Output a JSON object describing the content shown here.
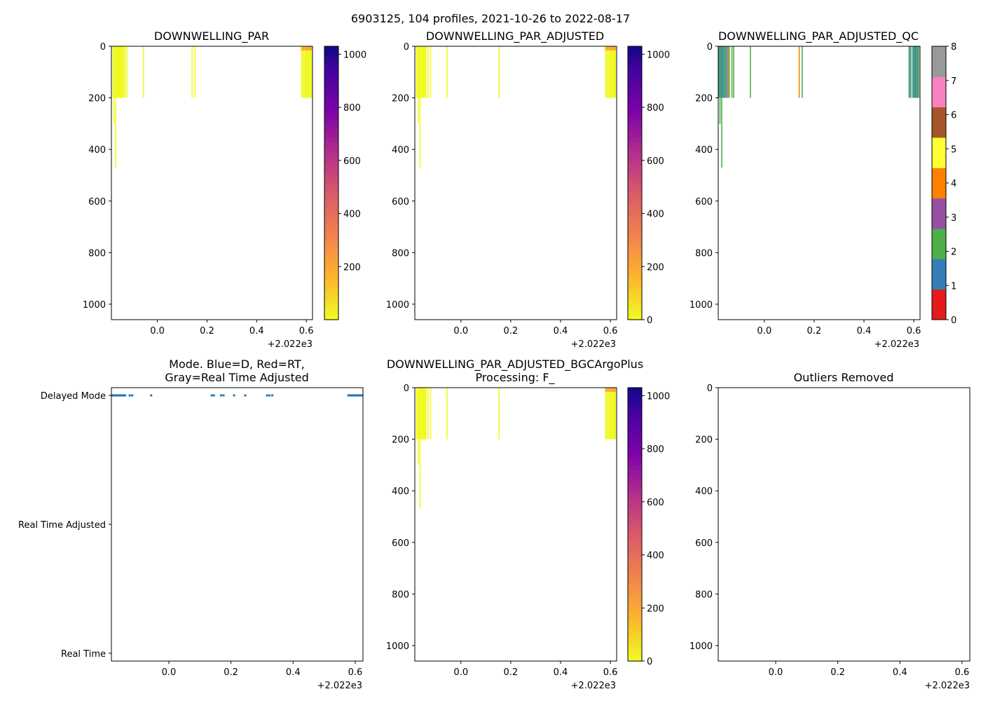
{
  "figure": {
    "suptitle": "6903125, 104 profiles, 2021-10-26 to 2022-08-17",
    "offset_label": "+2.022e3"
  },
  "colors": {
    "par_yellow": "#f0f921",
    "par_orange": "#fca636",
    "par_red": "#e16462",
    "mode_blue": "#1f77b4",
    "qc": [
      "#e41a1c",
      "#377eb8",
      "#4daf4a",
      "#984ea3",
      "#ff7f00",
      "#ffff33",
      "#a65628",
      "#f781bf",
      "#999999"
    ]
  },
  "chart_data": [
    {
      "id": "par",
      "type": "heatmap",
      "title": "DOWNWELLING_PAR",
      "x_ticks": [
        "0.0",
        "0.2",
        "0.4",
        "0.6"
      ],
      "x_tick_values": [
        0.0,
        0.2,
        0.4,
        0.6
      ],
      "xlim": [
        -0.185,
        0.625
      ],
      "y_ticks": [
        "0",
        "200",
        "400",
        "600",
        "800",
        "1000"
      ],
      "y_tick_values": [
        0,
        200,
        400,
        600,
        800,
        1000
      ],
      "ylim": [
        1060,
        0
      ],
      "colorbar": {
        "ticks": [
          "200",
          "400",
          "600",
          "800",
          "1000"
        ],
        "tick_values": [
          200,
          400,
          600,
          800,
          1000
        ],
        "range": [
          0,
          1030
        ],
        "scale": "plasma_r"
      },
      "profiles": [
        {
          "x": -0.178,
          "depth": 200
        },
        {
          "x": -0.175,
          "depth": 300
        },
        {
          "x": -0.172,
          "depth": 200
        },
        {
          "x": -0.168,
          "depth": 470
        },
        {
          "x": -0.164,
          "depth": 200
        },
        {
          "x": -0.16,
          "depth": 200
        },
        {
          "x": -0.156,
          "depth": 200
        },
        {
          "x": -0.152,
          "depth": 200
        },
        {
          "x": -0.148,
          "depth": 200
        },
        {
          "x": -0.144,
          "depth": 200
        },
        {
          "x": -0.14,
          "depth": 200
        },
        {
          "x": -0.136,
          "depth": 200
        },
        {
          "x": -0.13,
          "depth": 200
        },
        {
          "x": -0.123,
          "depth": 200
        },
        {
          "x": -0.056,
          "depth": 200
        },
        {
          "x": 0.14,
          "depth": 200
        },
        {
          "x": 0.152,
          "depth": 200
        },
        {
          "x": 0.581,
          "depth": 200
        },
        {
          "x": 0.586,
          "depth": 200
        },
        {
          "x": 0.591,
          "depth": 200
        },
        {
          "x": 0.596,
          "depth": 200
        },
        {
          "x": 0.6,
          "depth": 200
        },
        {
          "x": 0.604,
          "depth": 200
        },
        {
          "x": 0.608,
          "depth": 200
        },
        {
          "x": 0.612,
          "depth": 200
        },
        {
          "x": 0.616,
          "depth": 200
        },
        {
          "x": 0.62,
          "depth": 200
        }
      ]
    },
    {
      "id": "par_adjusted",
      "type": "heatmap",
      "title": "DOWNWELLING_PAR_ADJUSTED",
      "x_ticks": [
        "0.0",
        "0.2",
        "0.4",
        "0.6"
      ],
      "x_tick_values": [
        0.0,
        0.2,
        0.4,
        0.6
      ],
      "xlim": [
        -0.185,
        0.625
      ],
      "y_ticks": [
        "0",
        "200",
        "400",
        "600",
        "800",
        "1000"
      ],
      "y_tick_values": [
        0,
        200,
        400,
        600,
        800,
        1000
      ],
      "ylim": [
        1060,
        0
      ],
      "colorbar": {
        "ticks": [
          "0",
          "200",
          "400",
          "600",
          "800",
          "1000"
        ],
        "tick_values": [
          0,
          200,
          400,
          600,
          800,
          1000
        ],
        "range": [
          0,
          1030
        ],
        "scale": "plasma_r"
      },
      "profiles": [
        {
          "x": -0.178,
          "depth": 200
        },
        {
          "x": -0.174,
          "depth": 200
        },
        {
          "x": -0.171,
          "depth": 300
        },
        {
          "x": -0.167,
          "depth": 200
        },
        {
          "x": -0.164,
          "depth": 470
        },
        {
          "x": -0.16,
          "depth": 200
        },
        {
          "x": -0.156,
          "depth": 200
        },
        {
          "x": -0.152,
          "depth": 200
        },
        {
          "x": -0.148,
          "depth": 200
        },
        {
          "x": -0.144,
          "depth": 200
        },
        {
          "x": -0.14,
          "depth": 200
        },
        {
          "x": -0.132,
          "depth": 200
        },
        {
          "x": -0.122,
          "depth": 200
        },
        {
          "x": -0.056,
          "depth": 200
        },
        {
          "x": 0.153,
          "depth": 200
        },
        {
          "x": 0.581,
          "depth": 200
        },
        {
          "x": 0.586,
          "depth": 200
        },
        {
          "x": 0.591,
          "depth": 200
        },
        {
          "x": 0.596,
          "depth": 200
        },
        {
          "x": 0.6,
          "depth": 200
        },
        {
          "x": 0.604,
          "depth": 200
        },
        {
          "x": 0.608,
          "depth": 200
        },
        {
          "x": 0.612,
          "depth": 200
        },
        {
          "x": 0.616,
          "depth": 200
        },
        {
          "x": 0.62,
          "depth": 200
        }
      ]
    },
    {
      "id": "par_adjusted_qc",
      "type": "heatmap",
      "title": "DOWNWELLING_PAR_ADJUSTED_QC",
      "x_ticks": [
        "0.0",
        "0.2",
        "0.4",
        "0.6"
      ],
      "x_tick_values": [
        0.0,
        0.2,
        0.4,
        0.6
      ],
      "xlim": [
        -0.185,
        0.625
      ],
      "y_ticks": [
        "0",
        "200",
        "400",
        "600",
        "800",
        "1000"
      ],
      "y_tick_values": [
        0,
        200,
        400,
        600,
        800,
        1000
      ],
      "ylim": [
        1060,
        0
      ],
      "colorbar": {
        "ticks": [
          "0",
          "1",
          "2",
          "3",
          "4",
          "5",
          "6",
          "7",
          "8"
        ],
        "tick_values": [
          0,
          1,
          2,
          3,
          4,
          5,
          6,
          7,
          8
        ],
        "range": [
          0,
          8
        ],
        "scale": "qc_categorical"
      },
      "profiles": [
        {
          "x": -0.182,
          "depth": 200,
          "qc": 1
        },
        {
          "x": -0.178,
          "depth": 300,
          "qc": 2
        },
        {
          "x": -0.174,
          "depth": 200,
          "qc": 1
        },
        {
          "x": -0.171,
          "depth": 470,
          "qc": 2
        },
        {
          "x": -0.168,
          "depth": 200,
          "qc": 1
        },
        {
          "x": -0.164,
          "depth": 200,
          "qc": 2
        },
        {
          "x": -0.16,
          "depth": 200,
          "qc": 1
        },
        {
          "x": -0.155,
          "depth": 200,
          "qc": 2
        },
        {
          "x": -0.15,
          "depth": 200,
          "qc": 1
        },
        {
          "x": -0.145,
          "depth": 200,
          "qc": 4
        },
        {
          "x": -0.141,
          "depth": 200,
          "qc": 2
        },
        {
          "x": -0.13,
          "depth": 200,
          "qc": 2
        },
        {
          "x": -0.123,
          "depth": 200,
          "qc": 2
        },
        {
          "x": -0.056,
          "depth": 200,
          "qc": 2
        },
        {
          "x": 0.14,
          "depth": 200,
          "qc": 4
        },
        {
          "x": 0.152,
          "depth": 200,
          "qc": 2
        },
        {
          "x": 0.581,
          "depth": 200,
          "qc": 2
        },
        {
          "x": 0.586,
          "depth": 200,
          "qc": 1
        },
        {
          "x": 0.593,
          "depth": 200,
          "qc": 2
        },
        {
          "x": 0.599,
          "depth": 200,
          "qc": 1
        },
        {
          "x": 0.603,
          "depth": 200,
          "qc": 2
        },
        {
          "x": 0.607,
          "depth": 200,
          "qc": 1
        },
        {
          "x": 0.611,
          "depth": 200,
          "qc": 2
        },
        {
          "x": 0.615,
          "depth": 200,
          "qc": 1
        },
        {
          "x": 0.62,
          "depth": 200,
          "qc": 2
        }
      ]
    },
    {
      "id": "mode",
      "type": "scatter",
      "title_line1": "Mode. Blue=D, Red=RT,",
      "title_line2": "Gray=Real Time Adjusted",
      "x_ticks": [
        "0.0",
        "0.2",
        "0.4",
        "0.6"
      ],
      "x_tick_values": [
        0.0,
        0.2,
        0.4,
        0.6
      ],
      "xlim": [
        -0.185,
        0.625
      ],
      "y_categories": [
        "Delayed Mode",
        "Real Time Adjusted",
        "Real Time"
      ],
      "y_category_values": [
        2,
        1,
        0
      ],
      "ylim": [
        -0.06,
        2.06
      ],
      "points_mode": "Delayed Mode",
      "points_x": [
        -0.182,
        -0.179,
        -0.176,
        -0.173,
        -0.17,
        -0.167,
        -0.164,
        -0.161,
        -0.158,
        -0.155,
        -0.15,
        -0.146,
        -0.141,
        -0.126,
        -0.118,
        -0.057,
        0.138,
        0.145,
        0.168,
        0.176,
        0.21,
        0.246,
        0.316,
        0.324,
        0.333,
        0.578,
        0.582,
        0.586,
        0.589,
        0.592,
        0.595,
        0.598,
        0.601,
        0.604,
        0.607,
        0.61,
        0.613,
        0.616,
        0.619,
        0.622
      ]
    },
    {
      "id": "par_bgcargoplus",
      "type": "heatmap",
      "title_line1": "DOWNWELLING_PAR_ADJUSTED_BGCArgoPlus",
      "title_line2": "Processing: F_",
      "x_ticks": [
        "0.0",
        "0.2",
        "0.4",
        "0.6"
      ],
      "x_tick_values": [
        0.0,
        0.2,
        0.4,
        0.6
      ],
      "xlim": [
        -0.185,
        0.625
      ],
      "y_ticks": [
        "0",
        "200",
        "400",
        "600",
        "800",
        "1000"
      ],
      "y_tick_values": [
        0,
        200,
        400,
        600,
        800,
        1000
      ],
      "ylim": [
        1060,
        0
      ],
      "colorbar": {
        "ticks": [
          "0",
          "200",
          "400",
          "600",
          "800",
          "1000"
        ],
        "tick_values": [
          0,
          200,
          400,
          600,
          800,
          1000
        ],
        "range": [
          0,
          1030
        ],
        "scale": "plasma_r"
      },
      "profiles": [
        {
          "x": -0.178,
          "depth": 200
        },
        {
          "x": -0.174,
          "depth": 200
        },
        {
          "x": -0.171,
          "depth": 300
        },
        {
          "x": -0.167,
          "depth": 200
        },
        {
          "x": -0.164,
          "depth": 470
        },
        {
          "x": -0.16,
          "depth": 200
        },
        {
          "x": -0.156,
          "depth": 200
        },
        {
          "x": -0.152,
          "depth": 200
        },
        {
          "x": -0.148,
          "depth": 200
        },
        {
          "x": -0.144,
          "depth": 200
        },
        {
          "x": -0.14,
          "depth": 200
        },
        {
          "x": -0.132,
          "depth": 200
        },
        {
          "x": -0.122,
          "depth": 200
        },
        {
          "x": -0.056,
          "depth": 200
        },
        {
          "x": 0.153,
          "depth": 200
        },
        {
          "x": 0.581,
          "depth": 200
        },
        {
          "x": 0.586,
          "depth": 200
        },
        {
          "x": 0.591,
          "depth": 200
        },
        {
          "x": 0.596,
          "depth": 200
        },
        {
          "x": 0.6,
          "depth": 200
        },
        {
          "x": 0.604,
          "depth": 200
        },
        {
          "x": 0.608,
          "depth": 200
        },
        {
          "x": 0.612,
          "depth": 200
        },
        {
          "x": 0.616,
          "depth": 200
        },
        {
          "x": 0.62,
          "depth": 200
        }
      ]
    },
    {
      "id": "outliers",
      "type": "scatter",
      "title": "Outliers Removed",
      "x_ticks": [
        "0.0",
        "0.2",
        "0.4",
        "0.6"
      ],
      "x_tick_values": [
        0.0,
        0.2,
        0.4,
        0.6
      ],
      "xlim": [
        -0.185,
        0.625
      ],
      "y_ticks": [
        "0",
        "200",
        "400",
        "600",
        "800",
        "1000"
      ],
      "y_tick_values": [
        0,
        200,
        400,
        600,
        800,
        1000
      ],
      "ylim": [
        1060,
        0
      ],
      "points": []
    }
  ]
}
